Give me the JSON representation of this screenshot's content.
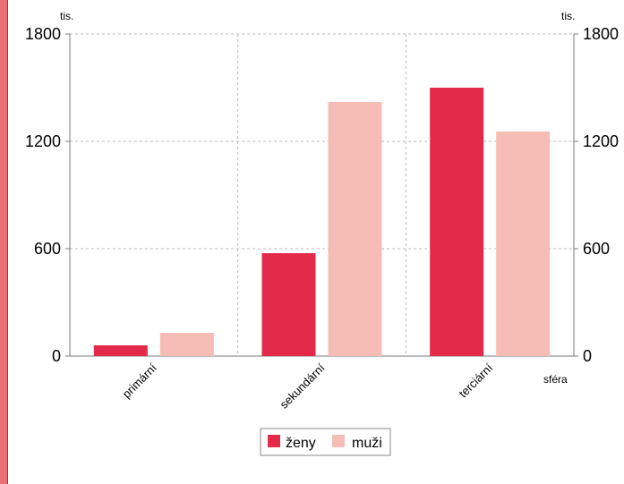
{
  "chart_data": {
    "type": "bar",
    "categories": [
      "primární",
      "sekundární",
      "terciární"
    ],
    "series": [
      {
        "name": "ženy",
        "color": "#e32a4a",
        "values": [
          60,
          575,
          1500
        ]
      },
      {
        "name": "muži",
        "color": "#f5bdb5",
        "values": [
          130,
          1420,
          1255
        ]
      }
    ],
    "ylim": [
      0,
      1800
    ],
    "yticks": [
      0,
      600,
      1200,
      1800
    ],
    "ylabel_left": "tis.",
    "ylabel_right": "tis.",
    "xlabel": "sféra",
    "grid": true,
    "legend": "bottom-center",
    "left_stripe_color": "#e87070"
  }
}
